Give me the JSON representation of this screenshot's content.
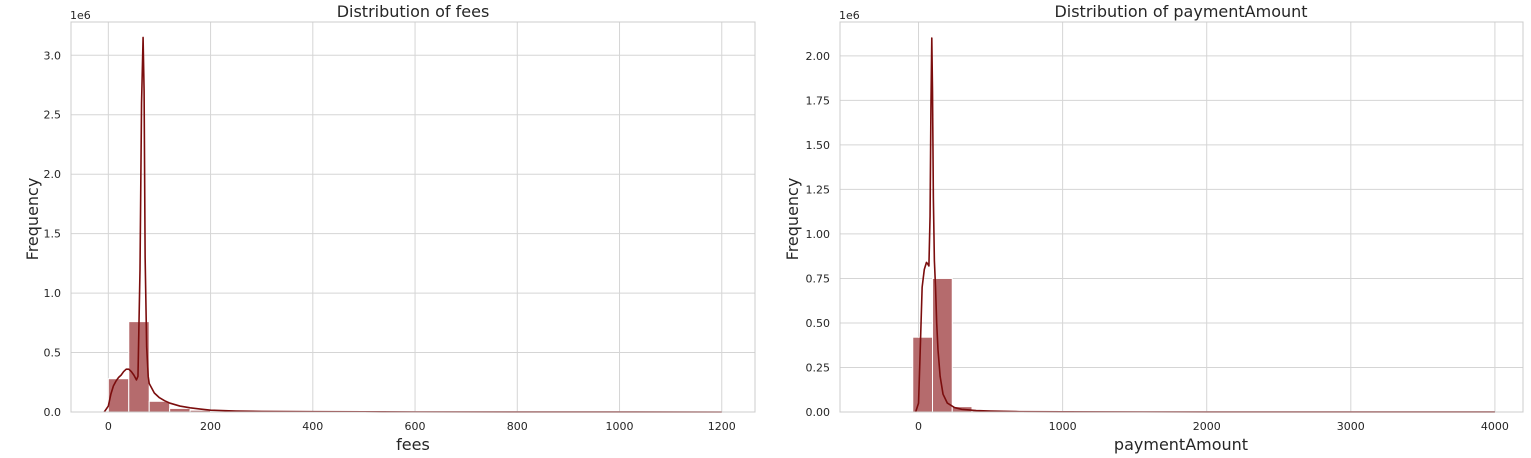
{
  "chart_data": [
    {
      "type": "bar",
      "title": "Distribution of fees",
      "xlabel": "fees",
      "ylabel": "Frequency",
      "y_scale_label": "1e6",
      "xlim": [
        -73,
        1265
      ],
      "ylim": [
        0,
        3.28
      ],
      "xticks": [
        0,
        200,
        400,
        600,
        800,
        1000,
        1200
      ],
      "xtick_labels": [
        "0",
        "200",
        "400",
        "600",
        "800",
        "1000",
        "1200"
      ],
      "yticks": [
        0,
        0.5,
        1,
        1.5,
        2,
        2.5,
        3
      ],
      "ytick_labels": [
        "0.0",
        "0.5",
        "1.0",
        "1.5",
        "2.0",
        "2.5",
        "3.0"
      ],
      "grid": true,
      "bins": {
        "edges": [
          0,
          40,
          80,
          120,
          160,
          200,
          240,
          280,
          320,
          360,
          400,
          440,
          480,
          520,
          560,
          600,
          640,
          680,
          720,
          760,
          800,
          840,
          880,
          920,
          960,
          1000,
          1040,
          1080,
          1120,
          1160,
          1200
        ],
        "values": [
          0.28,
          0.76,
          0.09,
          0.03,
          0.015,
          0.008,
          0.005,
          0.003,
          0.002,
          0.0015,
          0.001,
          0.001,
          0.0008,
          0.0006,
          0.0005,
          0.0004,
          0.0003,
          0.0003,
          0.0002,
          0.0002,
          0.0002,
          0.0001,
          0.0001,
          0.0001,
          0.0001,
          0.0001,
          0.0001,
          0.0001,
          0.0001,
          0.0001
        ]
      },
      "kde": {
        "x": [
          -8,
          0,
          5,
          10,
          15,
          20,
          25,
          30,
          35,
          40,
          45,
          50,
          55,
          58,
          62,
          65,
          68,
          70,
          72,
          75,
          78,
          80,
          90,
          100,
          110,
          120,
          140,
          160,
          180,
          200,
          250,
          300,
          400,
          500,
          600,
          800,
          1000,
          1200
        ],
        "y": [
          0,
          0.05,
          0.15,
          0.22,
          0.26,
          0.29,
          0.31,
          0.34,
          0.36,
          0.36,
          0.34,
          0.31,
          0.27,
          0.3,
          1.2,
          2.6,
          3.15,
          2.7,
          1.3,
          0.55,
          0.3,
          0.24,
          0.16,
          0.12,
          0.095,
          0.075,
          0.05,
          0.035,
          0.025,
          0.015,
          0.008,
          0.005,
          0.003,
          0.002,
          0.001,
          0.0005,
          0.0003,
          0.0001
        ]
      }
    },
    {
      "type": "bar",
      "title": "Distribution of paymentAmount",
      "xlabel": "paymentAmount",
      "ylabel": "Frequency",
      "y_scale_label": "1e6",
      "xlim": [
        -545,
        4195
      ],
      "ylim": [
        0,
        2.19
      ],
      "xticks": [
        0,
        1000,
        2000,
        3000,
        4000
      ],
      "xtick_labels": [
        "0",
        "1000",
        "2000",
        "3000",
        "4000"
      ],
      "yticks": [
        0,
        0.25,
        0.5,
        0.75,
        1,
        1.25,
        1.5,
        1.75,
        2
      ],
      "ytick_labels": [
        "0.00",
        "0.25",
        "0.50",
        "0.75",
        "1.00",
        "1.25",
        "1.50",
        "1.75",
        "2.00"
      ],
      "grid": true,
      "bins": {
        "edges": [
          -40,
          97,
          234,
          371,
          508,
          645,
          782,
          919,
          1056,
          1193,
          1330,
          1467,
          1604,
          1741,
          1878,
          2015,
          2152,
          2289,
          2426,
          2563,
          2700,
          2837,
          2974,
          3111,
          3248,
          3385,
          3522,
          3659,
          3796,
          3933,
          4070
        ],
        "values": [
          0.42,
          0.75,
          0.03,
          0.008,
          0.004,
          0.002,
          0.001,
          0.001,
          0.0008,
          0.0006,
          0.0005,
          0.0004,
          0.0003,
          0.0003,
          0.0002,
          0.0002,
          0.0002,
          0.0001,
          0.0001,
          0.0001,
          0.0001,
          0.0001,
          0.0001,
          0.0001,
          0.0001,
          0.0001,
          0.0001,
          0.0001,
          0.0001,
          0.0001
        ]
      },
      "kde": {
        "x": [
          -20,
          0,
          10,
          25,
          40,
          55,
          65,
          72,
          80,
          86,
          92,
          97,
          103,
          110,
          118,
          126,
          135,
          150,
          170,
          200,
          250,
          300,
          400,
          500,
          700,
          1000,
          2000,
          3000,
          4000
        ],
        "y": [
          0,
          0.05,
          0.3,
          0.7,
          0.8,
          0.84,
          0.83,
          0.82,
          1.1,
          1.7,
          2.1,
          1.8,
          1.2,
          0.85,
          0.7,
          0.5,
          0.35,
          0.2,
          0.1,
          0.05,
          0.025,
          0.015,
          0.008,
          0.005,
          0.002,
          0.001,
          0.0005,
          0.0003,
          0.0001
        ]
      }
    }
  ],
  "colors": {
    "bar_fill": "#b56b6d",
    "bar_edge": "#ffffff",
    "kde_line": "#7b0d0d",
    "grid": "#d5d5d5",
    "axes_edge": "#cccccc",
    "text": "#262626"
  }
}
